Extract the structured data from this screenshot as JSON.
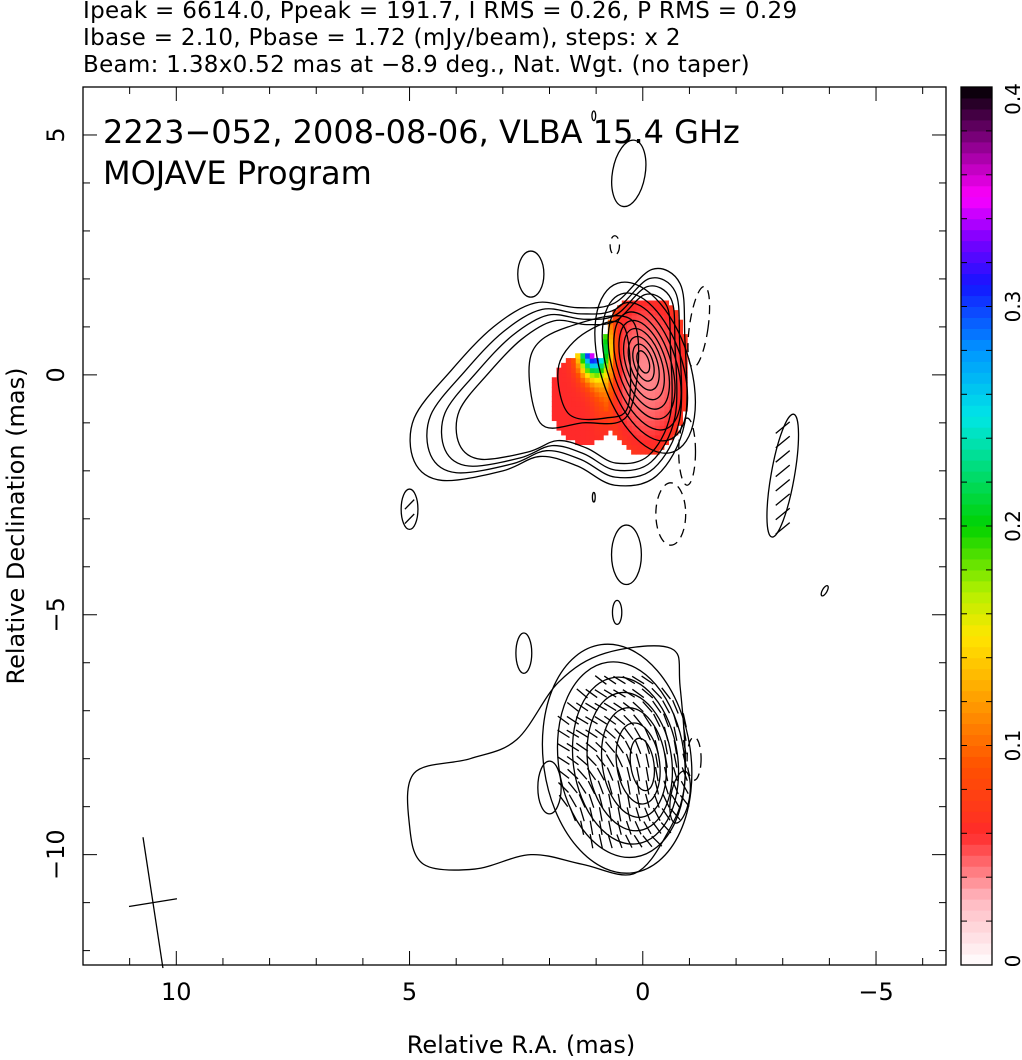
{
  "header": {
    "line1": "Ipeak = 6614.0, Ppeak = 191.7, I RMS = 0.26, P RMS = 0.29",
    "line2": "Ibase = 2.10, Pbase = 1.72 (mJy/beam), steps: x 2",
    "line3": "Beam: 1.38x0.52 mas at −8.9 deg., Nat. Wgt. (no taper)"
  },
  "chart_data": [
    {
      "type": "contour",
      "title_line1": "2223−052, 2008-08-06, VLBA 15.4 GHz",
      "title_line2": "MOJAVE Program",
      "xlabel": "Relative R.A. (mas)",
      "ylabel": "Relative Declination (mas)",
      "xlim": [
        12,
        -6.5
      ],
      "ylim": [
        -12.3,
        6
      ],
      "x_ticks": [
        10,
        5,
        0,
        -5
      ],
      "x_tick_labels": [
        "10",
        "5",
        "0",
        "−5"
      ],
      "y_ticks": [
        5,
        0,
        -5,
        -10
      ],
      "y_tick_labels": [
        "5",
        "0",
        "−5",
        "−10"
      ],
      "contour_levels_mJy_per_beam": [
        2.1,
        4.2,
        8.4,
        16.8,
        33.6,
        67.2,
        134.4,
        268.8,
        537.6,
        1075.2,
        2150.4,
        4300.8
      ],
      "total_intensity_peak": {
        "x": 0.0,
        "y": 0.3,
        "value": 6614.0
      },
      "jet_extent": {
        "x_from": 5.0,
        "x_to": -0.8,
        "y_from": -2.3,
        "y_to": 2.0
      },
      "polarization_color_region": {
        "x_from": 2.1,
        "x_to": -0.9,
        "y_from": -1.8,
        "y_to": 1.6
      },
      "polarization_map": {
        "type": "contour_with_vectors",
        "y_offset_mas": -8,
        "extent": {
          "x_from": 5.0,
          "x_to": -1.0,
          "y_from": -10.4,
          "y_to": -5.8
        },
        "peak": {
          "x": -0.1,
          "y": -8.1
        }
      },
      "restoring_beam": {
        "major_mas": 1.38,
        "minor_mas": 0.52,
        "pa_deg": -8.9,
        "x": 10.5,
        "y": -11.0
      }
    },
    {
      "type": "colorbar",
      "colormap": "fractional polarization",
      "ylim": [
        0,
        0.4
      ],
      "ticks": [
        0,
        0.1,
        0.2,
        0.3,
        0.4
      ],
      "tick_labels": [
        "0",
        "0.1",
        "0.2",
        "0.3",
        "0.4"
      ],
      "stops": [
        {
          "v": 0.0,
          "color": "#ffffff"
        },
        {
          "v": 0.03,
          "color": "#ffb8c0"
        },
        {
          "v": 0.06,
          "color": "#ff2a2a"
        },
        {
          "v": 0.09,
          "color": "#ff5000"
        },
        {
          "v": 0.12,
          "color": "#ff9c00"
        },
        {
          "v": 0.15,
          "color": "#ffe600"
        },
        {
          "v": 0.17,
          "color": "#b4f000"
        },
        {
          "v": 0.2,
          "color": "#00d200"
        },
        {
          "v": 0.25,
          "color": "#00e6e6"
        },
        {
          "v": 0.28,
          "color": "#0096ff"
        },
        {
          "v": 0.31,
          "color": "#1414ff"
        },
        {
          "v": 0.33,
          "color": "#7800ff"
        },
        {
          "v": 0.35,
          "color": "#ff00ff"
        },
        {
          "v": 0.37,
          "color": "#a000a0"
        },
        {
          "v": 0.4,
          "color": "#000000"
        }
      ]
    }
  ]
}
